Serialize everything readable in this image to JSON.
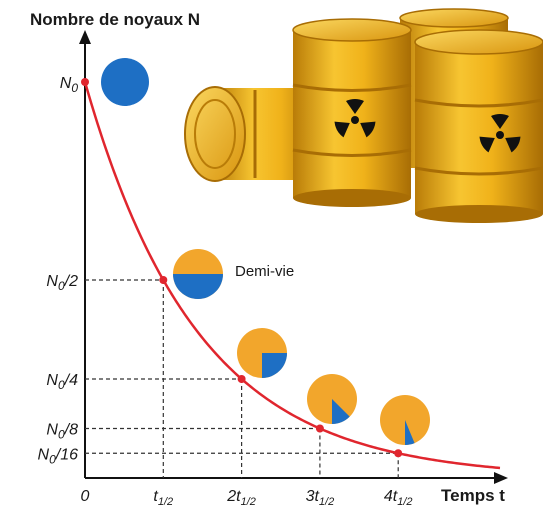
{
  "chart_data": {
    "type": "line",
    "title": "",
    "ylabel": "Nombre de noyaux N",
    "xlabel": "Temps t",
    "x_ticks": [
      "0",
      "t1/2",
      "2t1/2",
      "3t1/2",
      "4t1/2"
    ],
    "y_ticks": [
      {
        "label": "N0",
        "value": 1
      },
      {
        "label": "N0/2",
        "value": 0.5
      },
      {
        "label": "N0/4",
        "value": 0.25
      },
      {
        "label": "N0/8",
        "value": 0.125
      },
      {
        "label": "N0/16",
        "value": 0.0625
      }
    ],
    "series": [
      {
        "x_unit": "half-lives",
        "y_unit": "fraction of N0",
        "curve": "exponential decay N = N0 * (1/2)^(t/t1/2)",
        "marked_points": [
          {
            "x": 0,
            "y": 1
          },
          {
            "x": 1,
            "y": 0.5
          },
          {
            "x": 2,
            "y": 0.25
          },
          {
            "x": 3,
            "y": 0.125
          },
          {
            "x": 4,
            "y": 0.0625
          }
        ]
      }
    ],
    "xlim": [
      0,
      5.3
    ],
    "ylim": [
      0,
      1
    ],
    "grid": false,
    "annotations": [
      "Demi-vie"
    ],
    "pie_markers_remaining_fraction": [
      1,
      0.5,
      0.25,
      0.125,
      0.0625
    ],
    "colors": {
      "curve": "#e0262e",
      "remaining": "#1e6fc4",
      "decayed": "#f2a62c",
      "barrel": "#f0b21a"
    }
  }
}
